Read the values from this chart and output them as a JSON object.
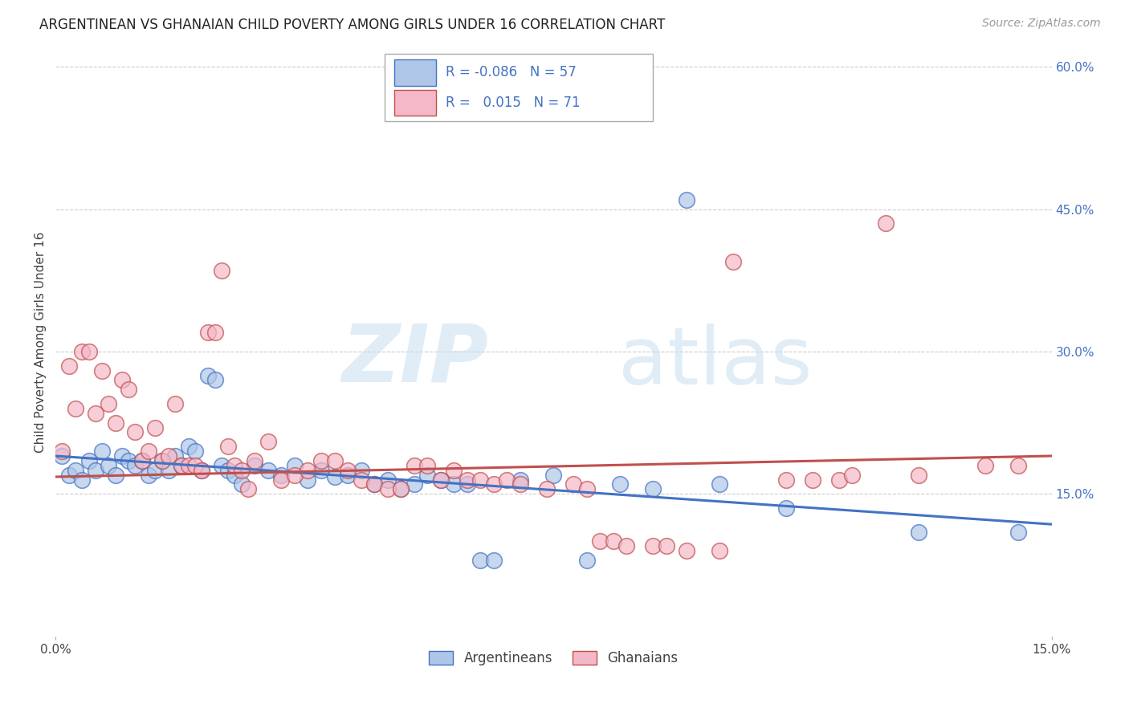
{
  "title": "ARGENTINEAN VS GHANAIAN CHILD POVERTY AMONG GIRLS UNDER 16 CORRELATION CHART",
  "source": "Source: ZipAtlas.com",
  "ylabel": "Child Poverty Among Girls Under 16",
  "xlim": [
    0.0,
    0.15
  ],
  "ylim": [
    0.0,
    0.62
  ],
  "yticks": [
    0.0,
    0.15,
    0.3,
    0.45,
    0.6
  ],
  "ytick_labels": [
    "",
    "15.0%",
    "30.0%",
    "45.0%",
    "60.0%"
  ],
  "xtick_labels": [
    "0.0%",
    "15.0%"
  ],
  "scatter_argentina": {
    "color": "#aec6e8",
    "edge_color": "#4472c4",
    "points": [
      [
        0.001,
        0.19
      ],
      [
        0.002,
        0.17
      ],
      [
        0.003,
        0.175
      ],
      [
        0.004,
        0.165
      ],
      [
        0.005,
        0.185
      ],
      [
        0.006,
        0.175
      ],
      [
        0.007,
        0.195
      ],
      [
        0.008,
        0.18
      ],
      [
        0.009,
        0.17
      ],
      [
        0.01,
        0.19
      ],
      [
        0.011,
        0.185
      ],
      [
        0.012,
        0.18
      ],
      [
        0.013,
        0.185
      ],
      [
        0.014,
        0.17
      ],
      [
        0.015,
        0.175
      ],
      [
        0.016,
        0.185
      ],
      [
        0.017,
        0.175
      ],
      [
        0.018,
        0.19
      ],
      [
        0.019,
        0.18
      ],
      [
        0.02,
        0.2
      ],
      [
        0.021,
        0.195
      ],
      [
        0.022,
        0.175
      ],
      [
        0.023,
        0.275
      ],
      [
        0.024,
        0.27
      ],
      [
        0.025,
        0.18
      ],
      [
        0.026,
        0.175
      ],
      [
        0.027,
        0.17
      ],
      [
        0.028,
        0.16
      ],
      [
        0.03,
        0.18
      ],
      [
        0.032,
        0.175
      ],
      [
        0.034,
        0.17
      ],
      [
        0.036,
        0.18
      ],
      [
        0.038,
        0.165
      ],
      [
        0.04,
        0.175
      ],
      [
        0.042,
        0.168
      ],
      [
        0.044,
        0.17
      ],
      [
        0.046,
        0.175
      ],
      [
        0.048,
        0.16
      ],
      [
        0.05,
        0.165
      ],
      [
        0.052,
        0.155
      ],
      [
        0.054,
        0.16
      ],
      [
        0.056,
        0.17
      ],
      [
        0.058,
        0.165
      ],
      [
        0.06,
        0.16
      ],
      [
        0.062,
        0.16
      ],
      [
        0.064,
        0.08
      ],
      [
        0.066,
        0.08
      ],
      [
        0.07,
        0.165
      ],
      [
        0.075,
        0.17
      ],
      [
        0.08,
        0.08
      ],
      [
        0.085,
        0.16
      ],
      [
        0.09,
        0.155
      ],
      [
        0.095,
        0.46
      ],
      [
        0.1,
        0.16
      ],
      [
        0.11,
        0.135
      ],
      [
        0.13,
        0.11
      ],
      [
        0.145,
        0.11
      ]
    ]
  },
  "scatter_ghana": {
    "color": "#f4b8c8",
    "edge_color": "#c0504d",
    "points": [
      [
        0.001,
        0.195
      ],
      [
        0.002,
        0.285
      ],
      [
        0.003,
        0.24
      ],
      [
        0.004,
        0.3
      ],
      [
        0.005,
        0.3
      ],
      [
        0.006,
        0.235
      ],
      [
        0.007,
        0.28
      ],
      [
        0.008,
        0.245
      ],
      [
        0.009,
        0.225
      ],
      [
        0.01,
        0.27
      ],
      [
        0.011,
        0.26
      ],
      [
        0.012,
        0.215
      ],
      [
        0.013,
        0.185
      ],
      [
        0.014,
        0.195
      ],
      [
        0.015,
        0.22
      ],
      [
        0.016,
        0.185
      ],
      [
        0.017,
        0.19
      ],
      [
        0.018,
        0.245
      ],
      [
        0.019,
        0.18
      ],
      [
        0.02,
        0.18
      ],
      [
        0.021,
        0.18
      ],
      [
        0.022,
        0.175
      ],
      [
        0.023,
        0.32
      ],
      [
        0.024,
        0.32
      ],
      [
        0.025,
        0.385
      ],
      [
        0.026,
        0.2
      ],
      [
        0.027,
        0.18
      ],
      [
        0.028,
        0.175
      ],
      [
        0.029,
        0.155
      ],
      [
        0.03,
        0.185
      ],
      [
        0.032,
        0.205
      ],
      [
        0.034,
        0.165
      ],
      [
        0.036,
        0.17
      ],
      [
        0.038,
        0.175
      ],
      [
        0.04,
        0.185
      ],
      [
        0.042,
        0.185
      ],
      [
        0.044,
        0.175
      ],
      [
        0.046,
        0.165
      ],
      [
        0.048,
        0.16
      ],
      [
        0.05,
        0.155
      ],
      [
        0.052,
        0.155
      ],
      [
        0.054,
        0.18
      ],
      [
        0.056,
        0.18
      ],
      [
        0.058,
        0.165
      ],
      [
        0.06,
        0.175
      ],
      [
        0.062,
        0.165
      ],
      [
        0.064,
        0.165
      ],
      [
        0.066,
        0.16
      ],
      [
        0.068,
        0.165
      ],
      [
        0.07,
        0.16
      ],
      [
        0.074,
        0.155
      ],
      [
        0.078,
        0.16
      ],
      [
        0.08,
        0.155
      ],
      [
        0.082,
        0.1
      ],
      [
        0.084,
        0.1
      ],
      [
        0.086,
        0.095
      ],
      [
        0.09,
        0.095
      ],
      [
        0.092,
        0.095
      ],
      [
        0.095,
        0.09
      ],
      [
        0.1,
        0.09
      ],
      [
        0.102,
        0.395
      ],
      [
        0.11,
        0.165
      ],
      [
        0.114,
        0.165
      ],
      [
        0.118,
        0.165
      ],
      [
        0.12,
        0.17
      ],
      [
        0.125,
        0.435
      ],
      [
        0.13,
        0.17
      ],
      [
        0.14,
        0.18
      ],
      [
        0.145,
        0.18
      ]
    ]
  },
  "trend_argentina": {
    "x": [
      0.0,
      0.15
    ],
    "y": [
      0.19,
      0.118
    ],
    "color": "#4472c4"
  },
  "trend_ghana": {
    "x": [
      0.0,
      0.15
    ],
    "y": [
      0.168,
      0.19
    ],
    "color": "#c0504d"
  },
  "watermark_zip": "ZIP",
  "watermark_atlas": "atlas",
  "background_color": "#ffffff",
  "grid_color": "#cccccc"
}
